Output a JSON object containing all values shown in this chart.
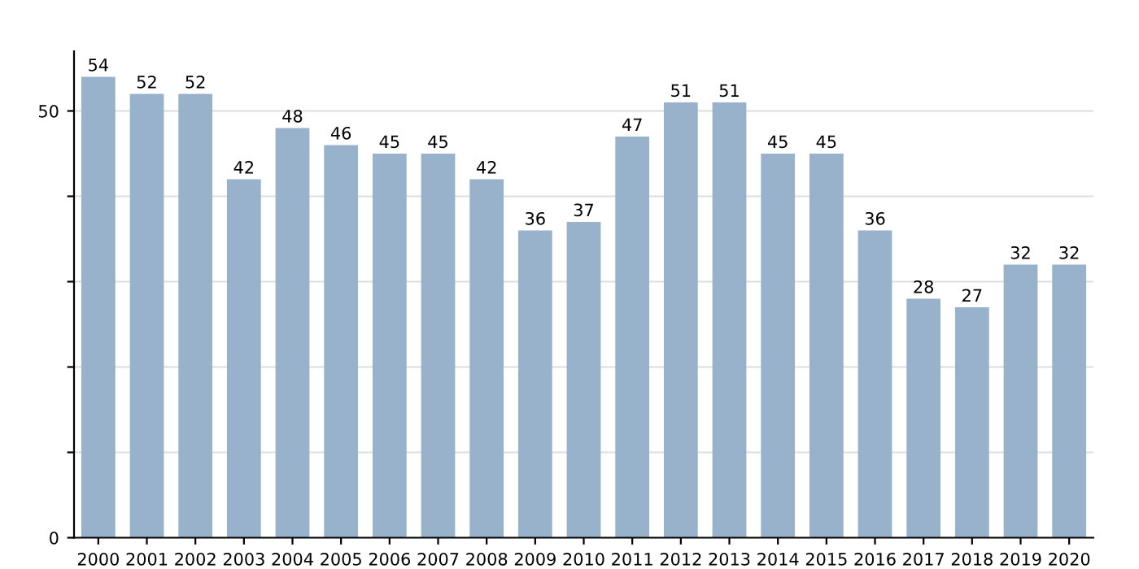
{
  "chart_data": {
    "type": "bar",
    "categories": [
      "2000",
      "2001",
      "2002",
      "2003",
      "2004",
      "2005",
      "2006",
      "2007",
      "2008",
      "2009",
      "2010",
      "2011",
      "2012",
      "2013",
      "2014",
      "2015",
      "2016",
      "2017",
      "2018",
      "2019",
      "2020"
    ],
    "values": [
      54,
      52,
      52,
      42,
      48,
      46,
      45,
      45,
      42,
      36,
      37,
      47,
      51,
      51,
      45,
      45,
      36,
      28,
      27,
      32,
      32
    ],
    "color": "#98b2cc",
    "ylim": [
      0,
      57
    ],
    "yticks": [
      0,
      {
        "value": 10,
        "label": null
      },
      {
        "value": 20,
        "label": null
      },
      {
        "value": 30,
        "label": null
      },
      {
        "value": 40,
        "label": null
      },
      50
    ],
    "grid": "y",
    "data_labels": true
  }
}
